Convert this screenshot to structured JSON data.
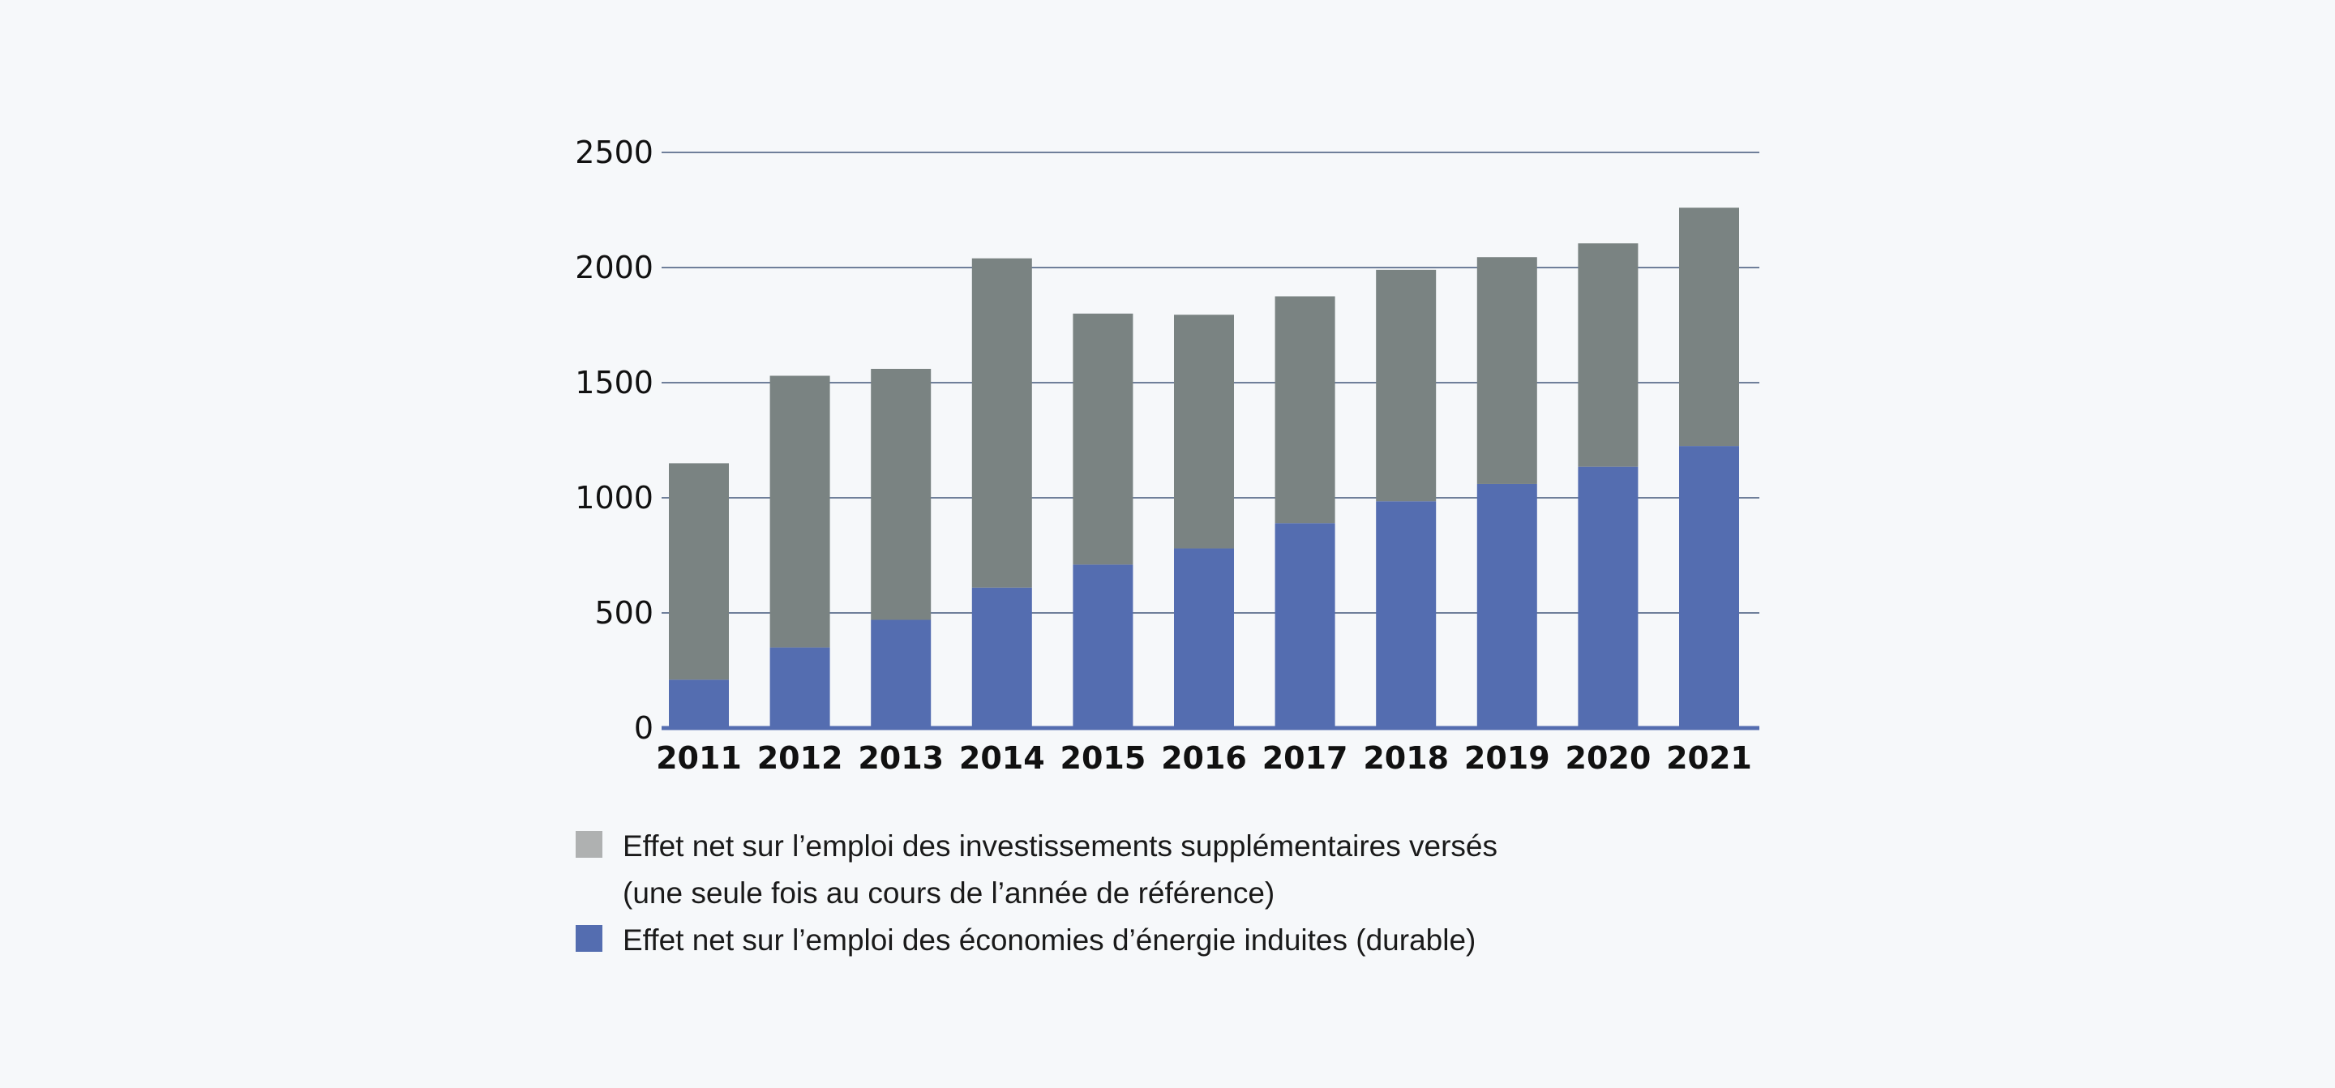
{
  "chart_data": {
    "type": "bar",
    "stacked": true,
    "categories": [
      "2011",
      "2012",
      "2013",
      "2014",
      "2015",
      "2016",
      "2017",
      "2018",
      "2019",
      "2020",
      "2021"
    ],
    "series": [
      {
        "name": "Effet net sur l’emploi des économies d’énergie induites (durable)",
        "color": "#546db0",
        "values": [
          210,
          350,
          470,
          610,
          710,
          780,
          890,
          985,
          1060,
          1135,
          1225
        ]
      },
      {
        "name": "Effet net sur l’emploi des investissements supplémentaires versés (une seule fois au cours de l’année de référence)",
        "color": "#7a8382",
        "values": [
          940,
          1180,
          1090,
          1430,
          1090,
          1015,
          985,
          1005,
          985,
          970,
          1035
        ]
      }
    ],
    "ylim": [
      0,
      2500
    ],
    "yticks": [
      "0",
      "500",
      "1000",
      "1500",
      "2000",
      "2500"
    ],
    "grid": true,
    "legend_position": "bottom-left",
    "xlabel": "",
    "ylabel": "",
    "title": ""
  },
  "legend": {
    "items": [
      {
        "lines": [
          "Effet net sur l’emploi des investissements supplémentaires versés",
          "(une seule fois au cours de l’année de référence)"
        ],
        "swatch_color": "#afb1b1"
      },
      {
        "lines": [
          "Effet net sur l’emploi des économies d’énergie induites (durable)"
        ],
        "swatch_color": "#546db0"
      }
    ]
  }
}
